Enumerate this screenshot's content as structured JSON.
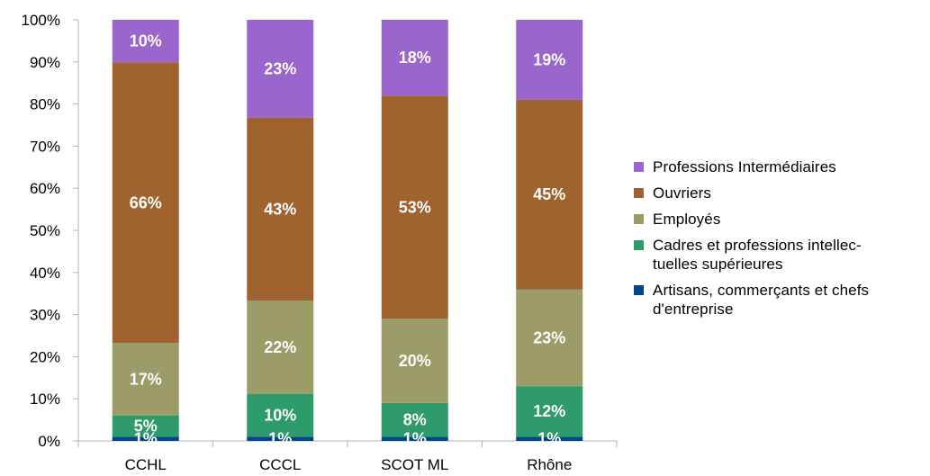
{
  "chart_data": {
    "type": "bar",
    "stacked": true,
    "percent": true,
    "categories": [
      "CCHL",
      "CCCL",
      "SCOT ML",
      "Rhône"
    ],
    "series": [
      {
        "name": "Artisans, commerçants et chefs d'entreprise",
        "color": "#004586",
        "values": [
          1,
          1,
          1,
          1
        ],
        "labels": [
          "1%",
          "1%",
          "1%",
          "1%"
        ]
      },
      {
        "name": "Cadres et professions intellec-tuelles supérieures",
        "color": "#2e9c6a",
        "values": [
          5,
          10,
          8,
          12
        ],
        "labels": [
          "5%",
          "10%",
          "8%",
          "12%"
        ]
      },
      {
        "name": "Employés",
        "color": "#9c9c68",
        "values": [
          17,
          22,
          20,
          23
        ],
        "labels": [
          "17%",
          "22%",
          "20%",
          "23%"
        ]
      },
      {
        "name": "Ouvriers",
        "color": "#a0622f",
        "values": [
          66,
          43,
          53,
          45
        ],
        "labels": [
          "66%",
          "43%",
          "53%",
          "45%"
        ]
      },
      {
        "name": "Professions Intermédiaires",
        "color": "#9a65cc",
        "values": [
          10,
          23,
          18,
          19
        ],
        "labels": [
          "10%",
          "23%",
          "18%",
          "19%"
        ]
      }
    ],
    "yticks": [
      "0%",
      "10%",
      "20%",
      "30%",
      "40%",
      "50%",
      "60%",
      "70%",
      "80%",
      "90%",
      "100%"
    ],
    "ylim": [
      0,
      100
    ],
    "legend_position": "right",
    "grid": false
  },
  "legend": {
    "items": [
      {
        "label": "Professions Intermédiaires",
        "color": "#9a65cc"
      },
      {
        "label": "Ouvriers",
        "color": "#a0622f"
      },
      {
        "label": "Employés",
        "color": "#9c9c68"
      },
      {
        "label": "Cadres et professions intellec-\ntuelles supérieures",
        "color": "#2e9c6a"
      },
      {
        "label": "Artisans, commerçants et chefs\nd'entreprise",
        "color": "#004586"
      }
    ]
  }
}
